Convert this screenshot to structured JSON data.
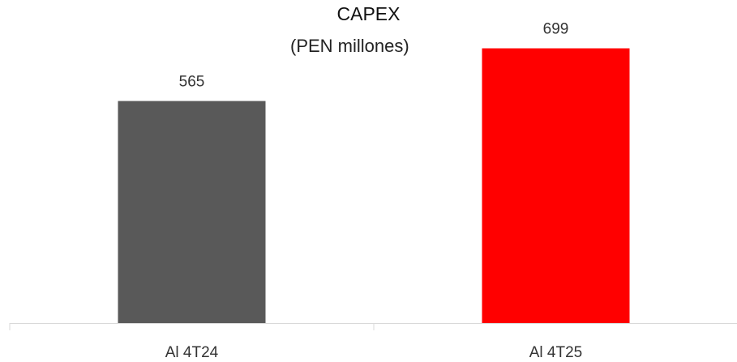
{
  "chart_data": {
    "type": "bar",
    "title": "CAPEX",
    "subtitle": "(PEN millones)",
    "categories": [
      "Al 4T24",
      "Al 4T25"
    ],
    "values": [
      565,
      699
    ],
    "data_labels": [
      "565",
      "699"
    ],
    "bar_colors": [
      "#595959",
      "#ff0000"
    ],
    "ylim": [
      0,
      760
    ],
    "grid": false,
    "legend": "none",
    "xlabel": "",
    "ylabel": ""
  }
}
